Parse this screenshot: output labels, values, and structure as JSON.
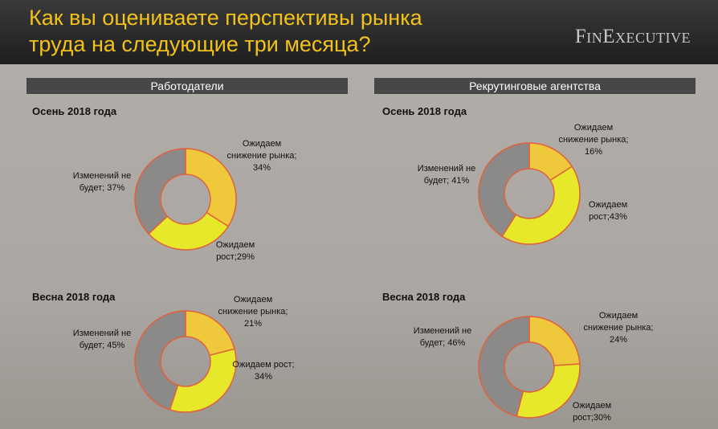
{
  "header": {
    "title": "Как вы оцениваете перспективы рынка труда на следующие три месяца?",
    "logo": "FinExecutive"
  },
  "sections": [
    "Работодатели",
    "Рекрутинговые агентства"
  ],
  "chart_data": [
    {
      "type": "pie",
      "donut": true,
      "subtitle": "Осень 2018 года",
      "values": [
        34,
        29,
        37
      ],
      "value_labels": [
        "Ожидаем снижение рынка; 34%",
        "Ожидаем рост;29%",
        "Изменений не будет; 37%"
      ],
      "colors": [
        "#f0c83c",
        "#e8e82a",
        "#8c8a88"
      ]
    },
    {
      "type": "pie",
      "donut": true,
      "subtitle": "Осень 2018 года",
      "values": [
        16,
        43,
        41
      ],
      "value_labels": [
        "Ожидаем снижение рынка; 16%",
        "Ожидаем рост;43%",
        "Изменений не будет; 41%"
      ],
      "colors": [
        "#f0c83c",
        "#e8e82a",
        "#8c8a88"
      ]
    },
    {
      "type": "pie",
      "donut": true,
      "subtitle": "Весна 2018 года",
      "values": [
        21,
        34,
        45
      ],
      "value_labels": [
        "Ожидаем снижение рынка; 21%",
        "Ожидаем рост; 34%",
        "Изменений не будет; 45%"
      ],
      "colors": [
        "#f0c83c",
        "#e8e82a",
        "#8c8a88"
      ]
    },
    {
      "type": "pie",
      "donut": true,
      "subtitle": "Весна 2018 года",
      "values": [
        24,
        30,
        46
      ],
      "value_labels": [
        "Ожидаем снижение рынка; 24%",
        "Ожидаем рост;30%",
        "Изменений не будет; 46%"
      ],
      "colors": [
        "#f0c83c",
        "#e8e82a",
        "#8c8a88"
      ]
    }
  ]
}
